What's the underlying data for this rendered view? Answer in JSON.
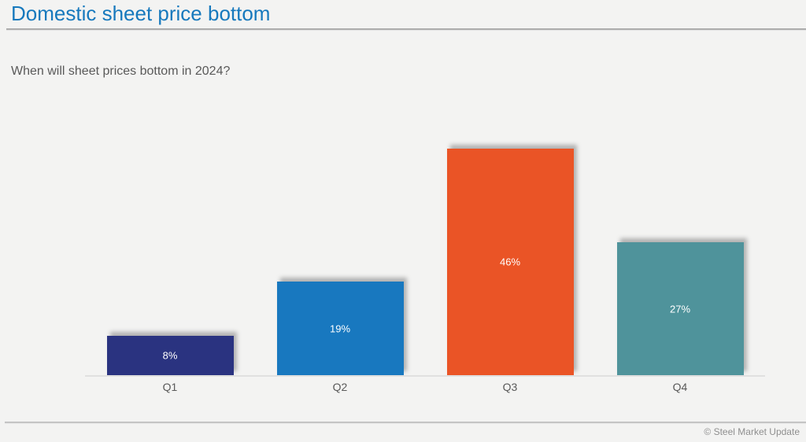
{
  "header": {
    "title": "Domestic sheet price bottom"
  },
  "question": "When will sheet prices bottom in 2024?",
  "footer": {
    "copyright": "© Steel Market Update"
  },
  "colors": {
    "title_text": "#1779bd",
    "question_text": "#595959",
    "background": "#f3f3f2",
    "axis_line": "#e0e0e0",
    "x_label_text": "#595959",
    "bar_label_text": "#ffffff",
    "copyright_text": "#8f8f8f"
  },
  "chart_data": {
    "type": "bar",
    "title": "When will sheet prices bottom in 2024?",
    "categories": [
      "Q1",
      "Q2",
      "Q3",
      "Q4"
    ],
    "values": [
      8,
      19,
      46,
      27
    ],
    "data_labels": [
      "8%",
      "19%",
      "46%",
      "27%"
    ],
    "bar_colors": [
      "#2a3380",
      "#1878bf",
      "#ea5426",
      "#4f939b"
    ],
    "xlabel": "",
    "ylabel": "",
    "ylim": [
      0,
      48
    ],
    "grid": false,
    "legend": false,
    "value_axis_visible": false,
    "data_label_position": "inside-center"
  }
}
